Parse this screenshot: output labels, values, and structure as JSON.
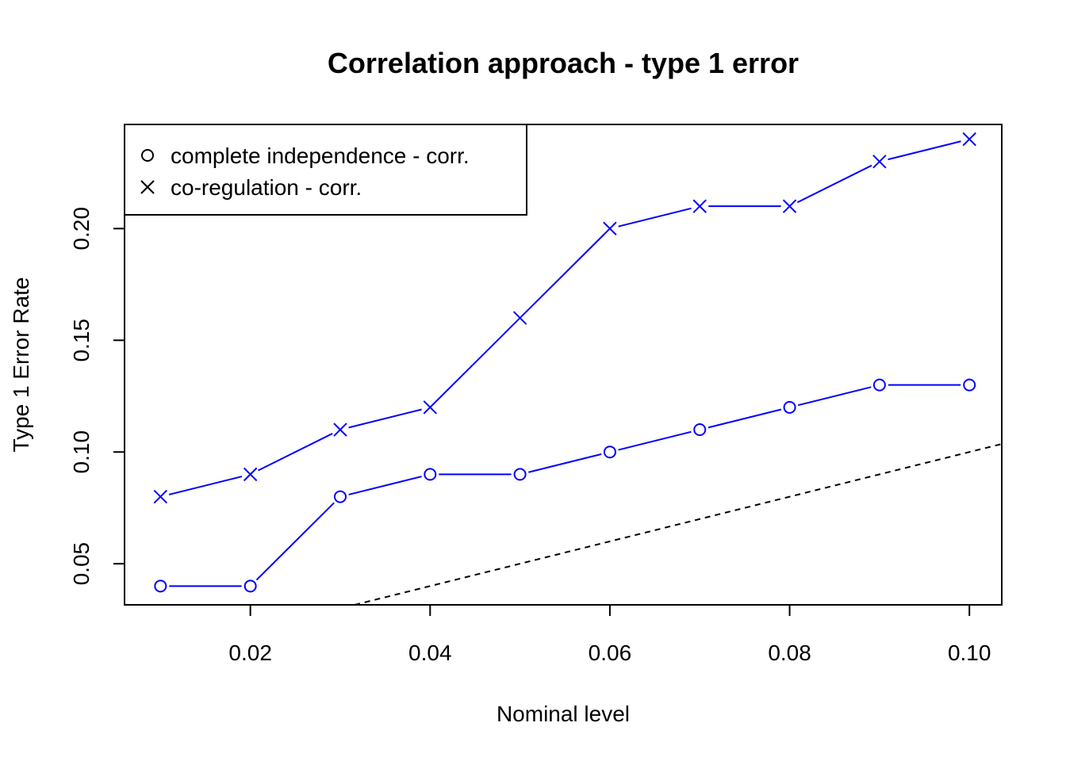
{
  "chart_data": {
    "type": "line",
    "title": "Correlation approach - type 1 error",
    "xlabel": "Nominal level",
    "ylabel": "Type 1 Error Rate",
    "xlim": [
      0.006,
      0.1036
    ],
    "ylim": [
      0.0316,
      0.2466
    ],
    "x_ticks": [
      0.02,
      0.04,
      0.06,
      0.08,
      0.1
    ],
    "x_tick_labels": [
      "0.02",
      "0.04",
      "0.06",
      "0.08",
      "0.10"
    ],
    "y_ticks": [
      0.05,
      0.1,
      0.15,
      0.2
    ],
    "y_tick_labels": [
      "0.05",
      "0.10",
      "0.15",
      "0.20"
    ],
    "x": [
      0.01,
      0.02,
      0.03,
      0.04,
      0.05,
      0.06,
      0.07,
      0.08,
      0.09,
      0.1
    ],
    "series": [
      {
        "name": "complete independence - corr.",
        "marker": "circle",
        "color": "#0000ff",
        "values": [
          0.04,
          0.04,
          0.08,
          0.09,
          0.09,
          0.1,
          0.11,
          0.12,
          0.13,
          0.13
        ]
      },
      {
        "name": "co-regulation - corr.",
        "marker": "cross",
        "color": "#0000ff",
        "values": [
          0.08,
          0.09,
          0.11,
          0.12,
          0.16,
          0.2,
          0.21,
          0.21,
          0.23,
          0.24
        ]
      }
    ],
    "reference_line": {
      "slope": 1,
      "intercept": 0,
      "style": "dashed",
      "color": "#000000"
    },
    "legend": {
      "position": "top-left",
      "marker_color": "#000000"
    },
    "grid": false
  }
}
